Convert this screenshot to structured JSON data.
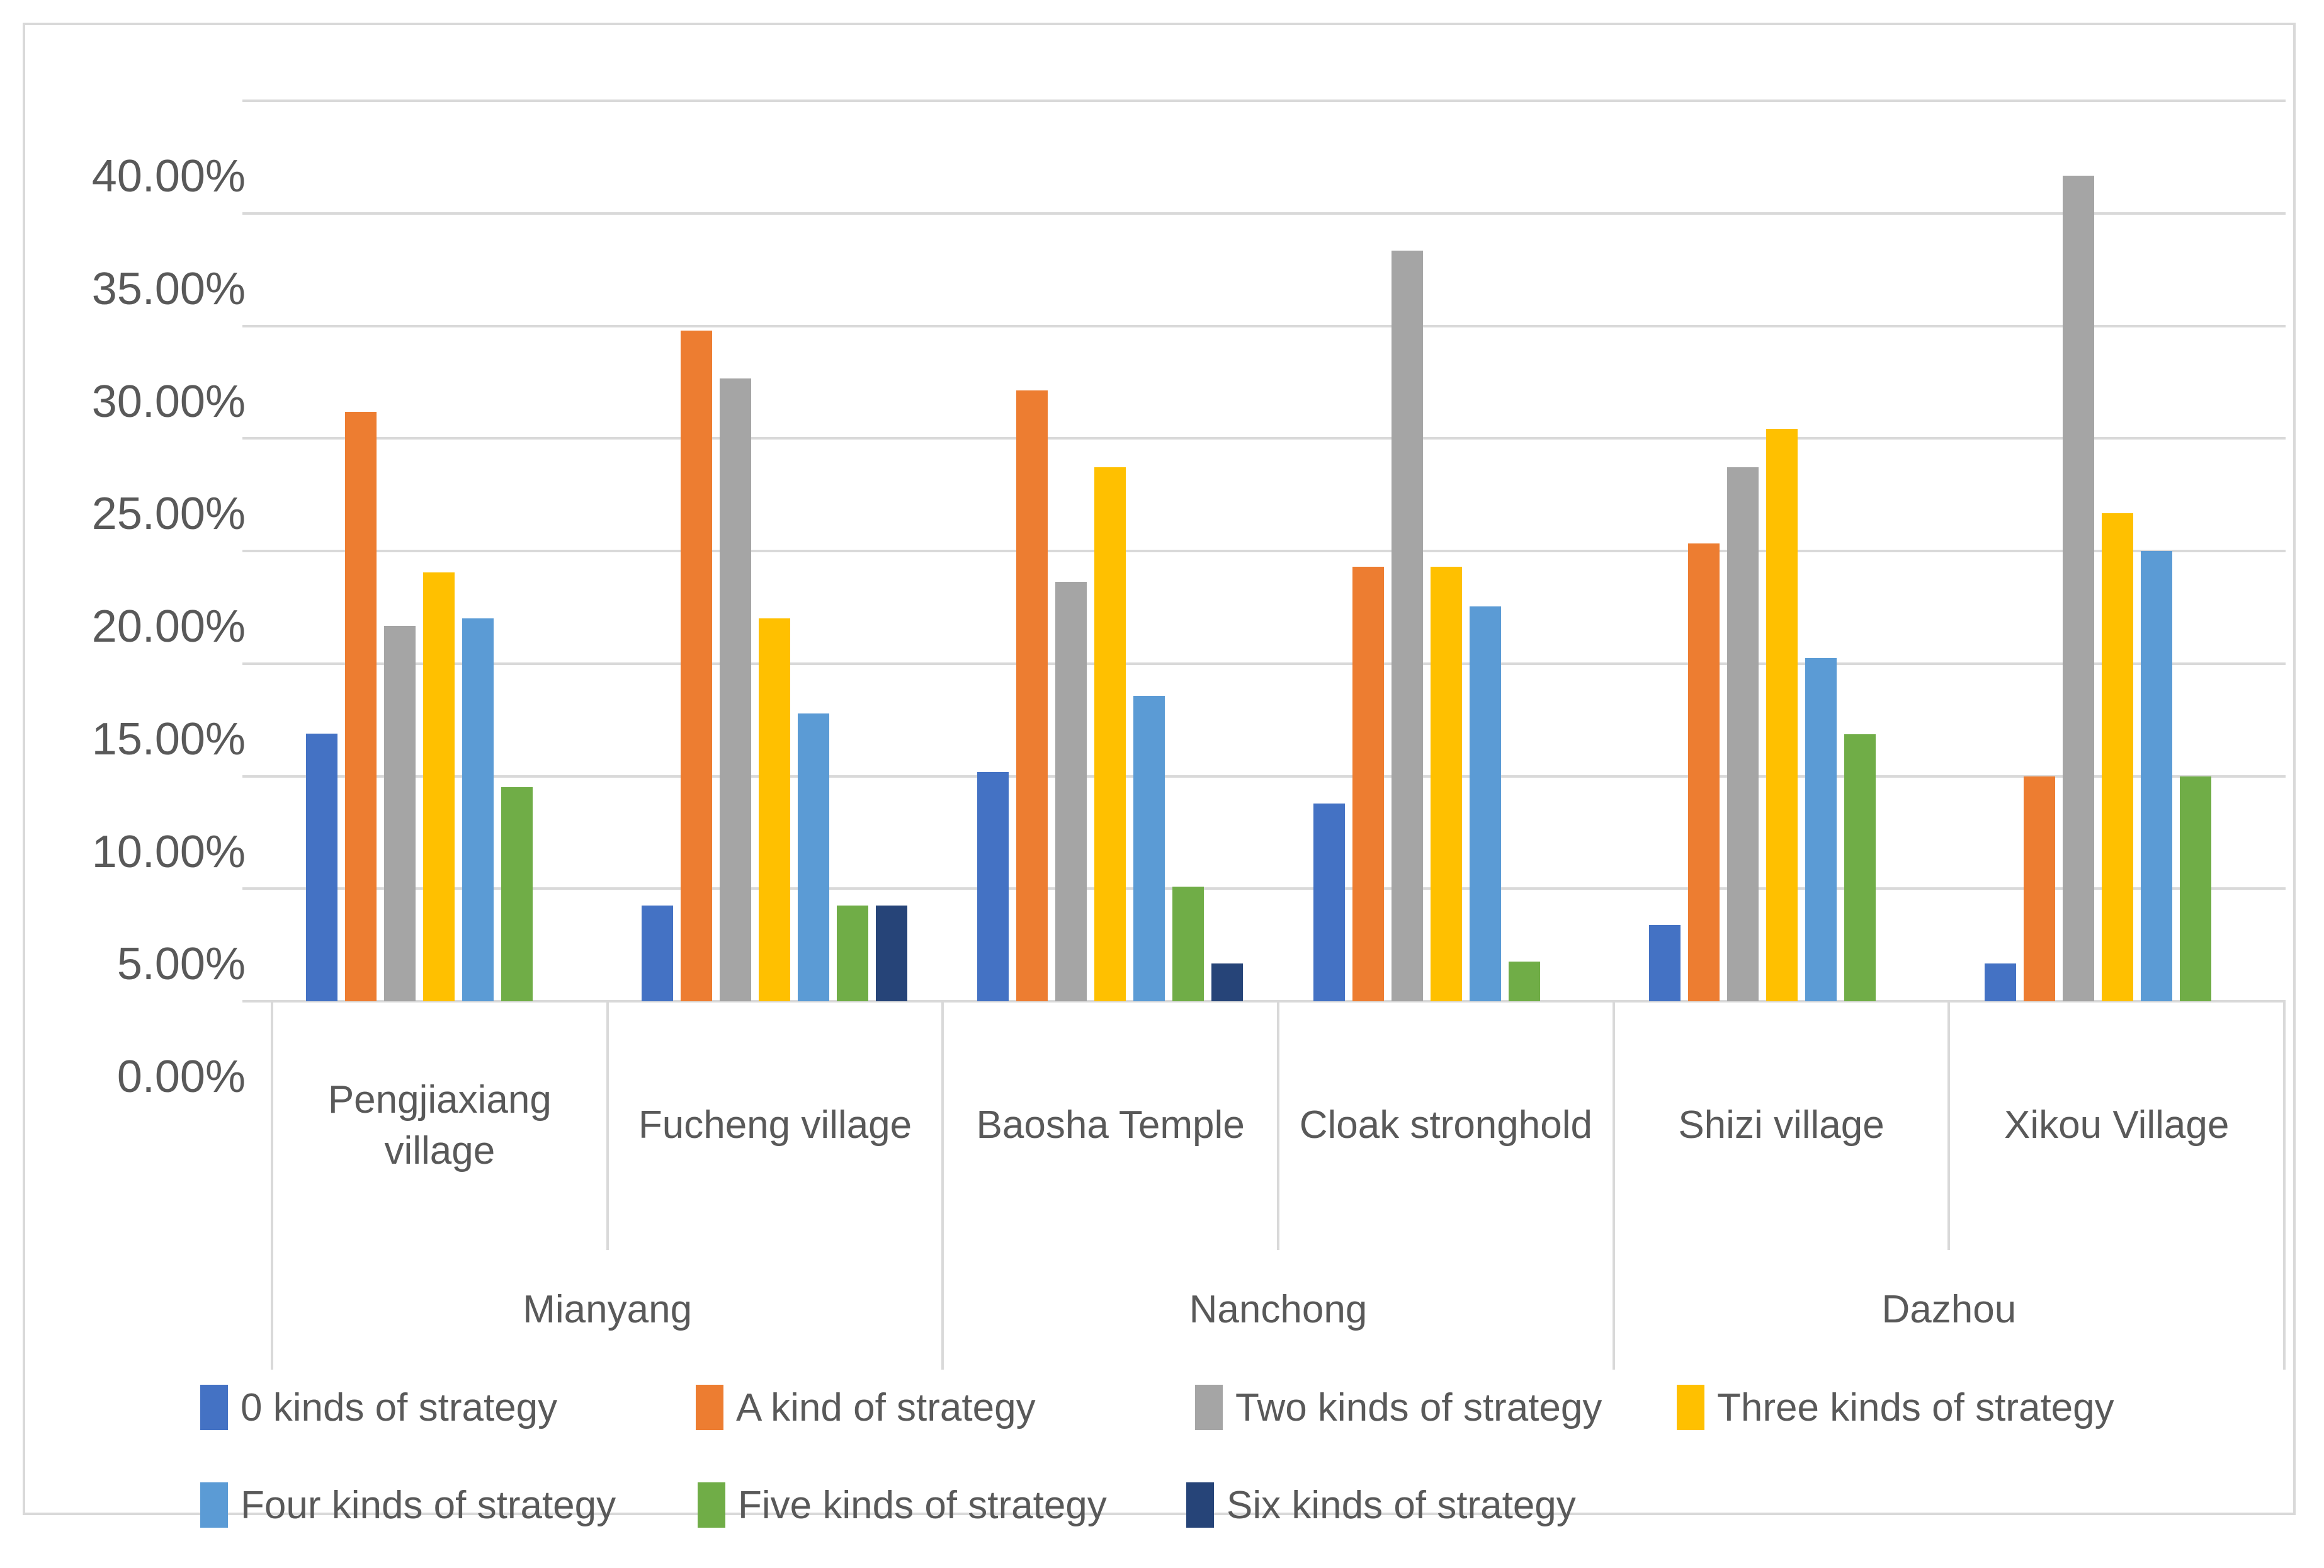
{
  "chart_data": {
    "type": "bar",
    "title": "",
    "y_axis_format": "percent",
    "ylim": [
      0,
      40
    ],
    "y_tick_step": 5,
    "y_tick_labels": [
      "0.00%",
      "5.00%",
      "10.00%",
      "15.00%",
      "20.00%",
      "25.00%",
      "30.00%",
      "35.00%",
      "40.00%"
    ],
    "grid": true,
    "legend_position": "bottom",
    "unit": "%",
    "categories": [
      "Pengjiaxiang village",
      "Fucheng village",
      "Baosha Temple",
      "Cloak stronghold",
      "Shizi village",
      "Xikou Village"
    ],
    "category_groups": [
      {
        "label": "Mianyang",
        "span": [
          "Pengjiaxiang village",
          "Fucheng village"
        ]
      },
      {
        "label": "Nanchong",
        "span": [
          "Baosha Temple",
          "Cloak stronghold"
        ]
      },
      {
        "label": "Dazhou",
        "span": [
          "Shizi village",
          "Xikou Village"
        ]
      }
    ],
    "series": [
      {
        "name": "0 kinds of strategy",
        "color": "#4472C4",
        "values": [
          11.9,
          4.26,
          10.17,
          8.77,
          3.39,
          1.67
        ]
      },
      {
        "name": "A kind of strategy",
        "color": "#ED7D31",
        "values": [
          26.19,
          29.79,
          27.12,
          19.3,
          20.34,
          10.0
        ]
      },
      {
        "name": "Two kinds of strategy",
        "color": "#A5A5A5",
        "values": [
          16.67,
          27.66,
          18.64,
          33.33,
          23.73,
          36.67
        ]
      },
      {
        "name": "Three kinds of strategy",
        "color": "#FFC000",
        "values": [
          19.05,
          17.02,
          23.73,
          19.3,
          25.42,
          21.67
        ]
      },
      {
        "name": "Four kinds of strategy",
        "color": "#5B9BD5",
        "values": [
          17.02,
          12.77,
          13.56,
          17.54,
          15.25,
          20.0
        ]
      },
      {
        "name": "Five kinds of strategy",
        "color": "#70AD47",
        "values": [
          9.52,
          4.26,
          5.08,
          1.75,
          11.86,
          10.0
        ]
      },
      {
        "name": "Six kinds of strategy",
        "color": "#264478",
        "values": [
          0,
          4.26,
          1.69,
          0,
          0,
          0
        ]
      }
    ],
    "legend_rows": [
      [
        0,
        1,
        2,
        3
      ],
      [
        4,
        5,
        6
      ]
    ]
  },
  "styles": {
    "grid_color": "#D9D9D9",
    "border_color": "#D9D9D9",
    "text_color": "#595959",
    "background": "#FFFFFF"
  }
}
